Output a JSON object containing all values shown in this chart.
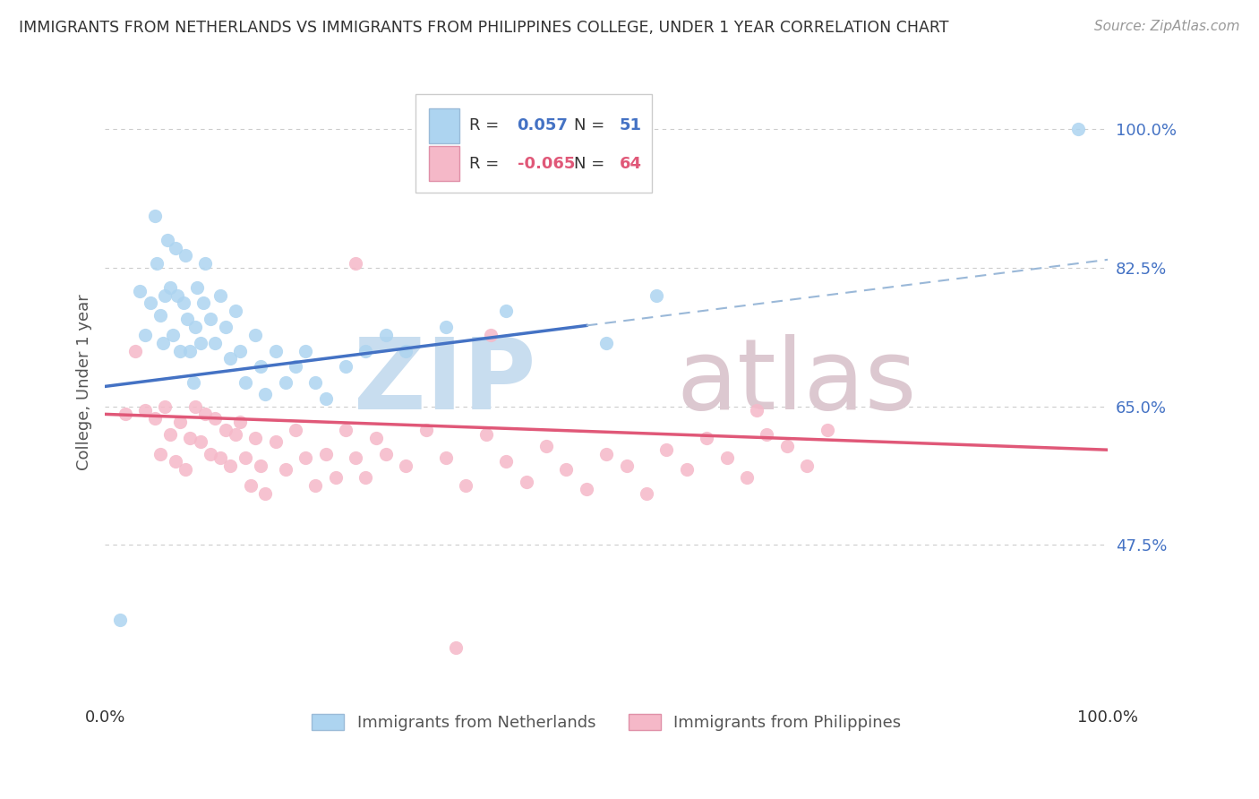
{
  "title": "IMMIGRANTS FROM NETHERLANDS VS IMMIGRANTS FROM PHILIPPINES COLLEGE, UNDER 1 YEAR CORRELATION CHART",
  "source": "Source: ZipAtlas.com",
  "ylabel": "College, Under 1 year",
  "y_ticks_labels": [
    "47.5%",
    "65.0%",
    "82.5%",
    "100.0%"
  ],
  "y_tick_vals": [
    47.5,
    65.0,
    82.5,
    100.0
  ],
  "x_range": [
    0.0,
    100.0
  ],
  "y_range": [
    28.0,
    108.0
  ],
  "r_netherlands": 0.057,
  "n_netherlands": 51,
  "r_philippines": -0.065,
  "n_philippines": 64,
  "color_netherlands": "#ADD4F0",
  "color_philippines": "#F5B8C8",
  "line_color_netherlands": "#4472C4",
  "line_color_philippines": "#E05878",
  "dashed_line_color": "#9AB8D8",
  "background_color": "#ffffff",
  "grid_color": "#cccccc",
  "nl_line_x0": 0.0,
  "nl_line_y0": 67.5,
  "nl_line_x1": 100.0,
  "nl_line_y1": 83.5,
  "nl_solid_end_x": 48.0,
  "ph_line_x0": 0.0,
  "ph_line_y0": 64.0,
  "ph_line_x1": 100.0,
  "ph_line_y1": 59.5,
  "watermark1": "ZIP",
  "watermark2": "atlas",
  "legend_r1": "R = ",
  "legend_v1": " 0.057",
  "legend_n1": "N = ",
  "legend_nv1": " 51",
  "legend_r2": "R = ",
  "legend_v2": "-0.065",
  "legend_n2": "N = ",
  "legend_nv2": " 64",
  "bottom_label1": "Immigrants from Netherlands",
  "bottom_label2": "Immigrants from Philippines"
}
